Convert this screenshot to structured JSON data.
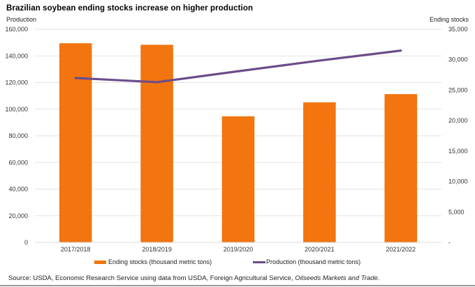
{
  "chart_data": {
    "type": "bar",
    "combo": "bar-line-dual-axis",
    "title": "Brazilian soybean ending stocks increase on higher production",
    "categories": [
      "2017/2018",
      "2018/2019",
      "2019/2020",
      "2020/2021",
      "2021/2022"
    ],
    "left_axis": {
      "label": "Production",
      "range": [
        0,
        160000
      ],
      "ticks": [
        0,
        20000,
        40000,
        60000,
        80000,
        100000,
        120000,
        140000,
        160000
      ],
      "tick_labels": [
        "0",
        "20,000",
        "40,000",
        "60,000",
        "80,000",
        "100,000",
        "120,000",
        "140,000",
        "160,000"
      ]
    },
    "right_axis": {
      "label": "Ending stocks",
      "range": [
        0,
        35000
      ],
      "ticks": [
        0,
        5000,
        10000,
        15000,
        20000,
        25000,
        30000,
        35000
      ],
      "tick_labels": [
        "-",
        "5,000",
        "10,000",
        "15,000",
        "20,000",
        "25,000",
        "30,000",
        "35,000"
      ]
    },
    "series": [
      {
        "name": "Ending stocks (thousand metric tons)",
        "type": "bar",
        "axis": "right",
        "color": "#F2750F",
        "values": [
          32700,
          32450,
          20700,
          23000,
          24350
        ]
      },
      {
        "name": "Production (thousand metric tons)",
        "type": "line",
        "axis": "left",
        "color": "#6B4C8A",
        "values": [
          123400,
          120300,
          128500,
          136500,
          144000
        ]
      }
    ],
    "grid": true,
    "legend_position": "bottom"
  },
  "source": {
    "prefix": "Source: USDA, Economic Research Service using data from USDA, Foreign Agricultural Service, ",
    "italic": "Oilseeds Markets and Trade",
    "suffix": "."
  }
}
